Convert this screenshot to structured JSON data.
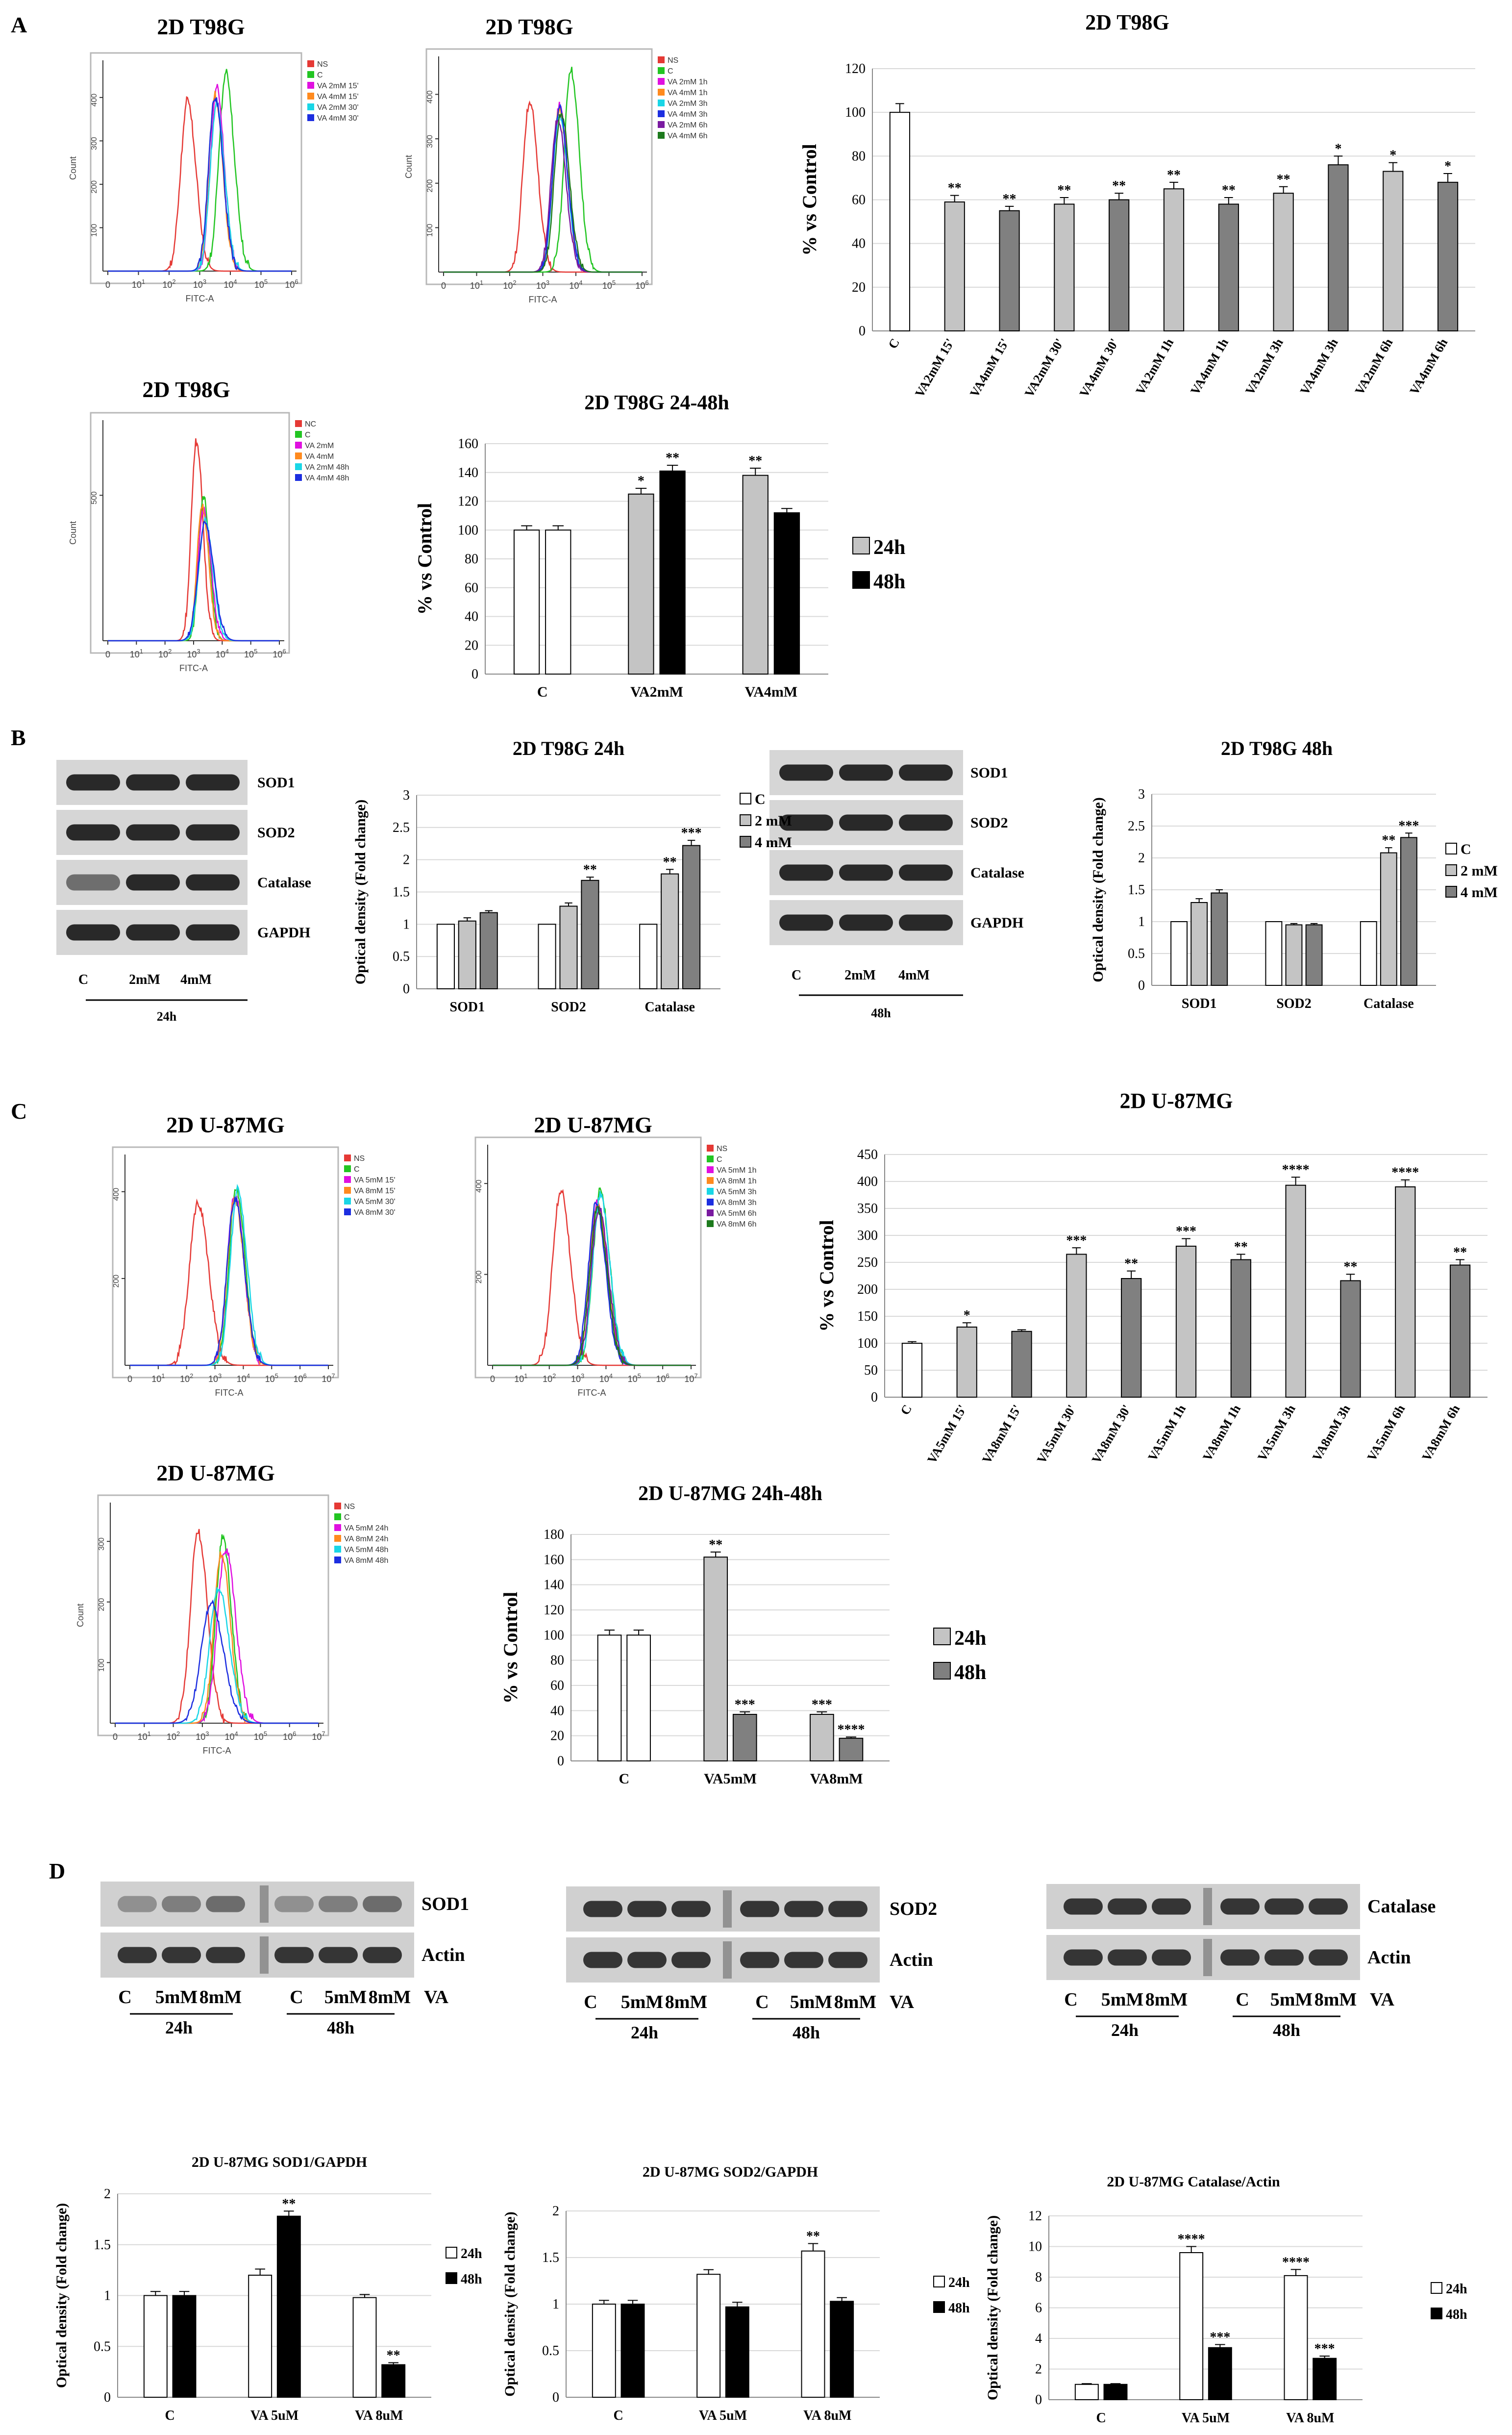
{
  "colors": {
    "red": "#e53935",
    "green": "#22c522",
    "magenta": "#e010e0",
    "orange": "#ff8a1e",
    "cyan": "#19d6e6",
    "blue": "#1c2ee0",
    "purple": "#7a1aa0",
    "darkgreen": "#1d7a1d",
    "white_bar": "#ffffff",
    "light_bar": "#c4c4c4",
    "dark_bar": "#808080",
    "black_bar": "#000000"
  },
  "panel_labels": [
    "A",
    "B",
    "C",
    "D"
  ],
  "histograms": [
    {
      "title": "2D T98G",
      "xlabel": "FITC-A",
      "ylabel": "Count",
      "yticks": [
        {
          "v": 100,
          "label": "100"
        },
        {
          "v": 200,
          "label": "200"
        },
        {
          "v": 300,
          "label": "300"
        },
        {
          "v": 400,
          "label": "400"
        }
      ],
      "ymax": 480,
      "legend": [
        {
          "label": "NS",
          "color": "red",
          "peak": 2.6,
          "width": 0.22,
          "height": 0.82
        },
        {
          "label": "C",
          "color": "green",
          "peak": 3.85,
          "width": 0.22,
          "height": 0.95
        },
        {
          "label": "VA 2mM 15'",
          "color": "magenta",
          "peak": 3.55,
          "width": 0.2,
          "height": 0.88
        },
        {
          "label": "VA 4mM 15'",
          "color": "orange",
          "peak": 3.5,
          "width": 0.2,
          "height": 0.85
        },
        {
          "label": "VA 2mM 30'",
          "color": "cyan",
          "peak": 3.55,
          "width": 0.21,
          "height": 0.8
        },
        {
          "label": "VA 4mM 30'",
          "color": "blue",
          "peak": 3.5,
          "width": 0.21,
          "height": 0.84
        }
      ]
    },
    {
      "title": "2D T98G",
      "xlabel": "FITC-A",
      "ylabel": "Count",
      "yticks": [
        {
          "v": 100,
          "label": "100"
        },
        {
          "v": 200,
          "label": "200"
        },
        {
          "v": 300,
          "label": "300"
        },
        {
          "v": 400,
          "label": "400"
        }
      ],
      "ymax": 480,
      "legend": [
        {
          "label": "NS",
          "color": "red",
          "peak": 2.6,
          "width": 0.2,
          "height": 0.8
        },
        {
          "label": "C",
          "color": "green",
          "peak": 3.85,
          "width": 0.2,
          "height": 0.95
        },
        {
          "label": "VA 2mM 1h",
          "color": "magenta",
          "peak": 3.5,
          "width": 0.2,
          "height": 0.78
        },
        {
          "label": "VA 4mM 1h",
          "color": "orange",
          "peak": 3.5,
          "width": 0.2,
          "height": 0.76
        },
        {
          "label": "VA 2mM 3h",
          "color": "cyan",
          "peak": 3.5,
          "width": 0.2,
          "height": 0.74
        },
        {
          "label": "VA 4mM 3h",
          "color": "blue",
          "peak": 3.5,
          "width": 0.2,
          "height": 0.77
        },
        {
          "label": "VA 2mM 6h",
          "color": "purple",
          "peak": 3.45,
          "width": 0.2,
          "height": 0.72
        },
        {
          "label": "VA 4mM 6h",
          "color": "darkgreen",
          "peak": 3.55,
          "width": 0.2,
          "height": 0.75
        }
      ]
    },
    {
      "title": "2D T98G",
      "xlabel": "FITC-A",
      "ylabel": "Count",
      "yticks": [
        {
          "v": 500,
          "label": "500"
        }
      ],
      "ymax": 750,
      "legend": [
        {
          "label": "NC",
          "color": "red",
          "peak": 3.1,
          "width": 0.18,
          "height": 0.92
        },
        {
          "label": "C",
          "color": "green",
          "peak": 3.35,
          "width": 0.17,
          "height": 0.66
        },
        {
          "label": "VA 2mM",
          "color": "magenta",
          "peak": 3.35,
          "width": 0.2,
          "height": 0.6
        },
        {
          "label": "VA 4mM",
          "color": "orange",
          "peak": 3.3,
          "width": 0.18,
          "height": 0.62
        },
        {
          "label": "VA 2mM 48h",
          "color": "cyan",
          "peak": 3.4,
          "width": 0.22,
          "height": 0.55
        },
        {
          "label": "VA 4mM 48h",
          "color": "blue",
          "peak": 3.4,
          "width": 0.24,
          "height": 0.54
        }
      ]
    },
    {
      "title": "2D U-87MG",
      "xlabel": "FITC-A",
      "ylabel": "",
      "yticks": [
        {
          "v": 200,
          "label": "200"
        },
        {
          "v": 400,
          "label": "400"
        }
      ],
      "ymax": 480,
      "legend": [
        {
          "label": "NS",
          "color": "red",
          "peak": 2.4,
          "width": 0.3,
          "height": 0.78
        },
        {
          "label": "C",
          "color": "green",
          "peak": 3.75,
          "width": 0.25,
          "height": 0.85
        },
        {
          "label": "VA 5mM 15'",
          "color": "magenta",
          "peak": 3.7,
          "width": 0.26,
          "height": 0.82
        },
        {
          "label": "VA 8mM 15'",
          "color": "orange",
          "peak": 3.7,
          "width": 0.26,
          "height": 0.8
        },
        {
          "label": "VA 5mM 30'",
          "color": "cyan",
          "peak": 3.8,
          "width": 0.26,
          "height": 0.84
        },
        {
          "label": "VA 8mM 30'",
          "color": "blue",
          "peak": 3.7,
          "width": 0.27,
          "height": 0.8
        }
      ]
    },
    {
      "title": "2D U-87MG",
      "xlabel": "FITC-A",
      "ylabel": "",
      "yticks": [
        {
          "v": 200,
          "label": "200"
        },
        {
          "v": 400,
          "label": "400"
        }
      ],
      "ymax": 480,
      "legend": [
        {
          "label": "NS",
          "color": "red",
          "peak": 2.4,
          "width": 0.28,
          "height": 0.8
        },
        {
          "label": "C",
          "color": "green",
          "peak": 3.8,
          "width": 0.26,
          "height": 0.8
        },
        {
          "label": "VA 5mM 1h",
          "color": "magenta",
          "peak": 3.7,
          "width": 0.27,
          "height": 0.75
        },
        {
          "label": "VA 8mM 1h",
          "color": "orange",
          "peak": 3.7,
          "width": 0.27,
          "height": 0.73
        },
        {
          "label": "VA 5mM 3h",
          "color": "cyan",
          "peak": 3.8,
          "width": 0.27,
          "height": 0.78
        },
        {
          "label": "VA 8mM 3h",
          "color": "blue",
          "peak": 3.65,
          "width": 0.27,
          "height": 0.74
        },
        {
          "label": "VA 5mM 6h",
          "color": "purple",
          "peak": 3.75,
          "width": 0.27,
          "height": 0.72
        },
        {
          "label": "VA 8mM 6h",
          "color": "darkgreen",
          "peak": 3.7,
          "width": 0.27,
          "height": 0.72
        }
      ]
    },
    {
      "title": "2D U-87MG",
      "xlabel": "FITC-A",
      "ylabel": "Count",
      "yticks": [
        {
          "v": 100,
          "label": "100"
        },
        {
          "v": 200,
          "label": "200"
        },
        {
          "v": 300,
          "label": "300"
        }
      ],
      "ymax": 360,
      "legend": [
        {
          "label": "NS",
          "color": "red",
          "peak": 2.85,
          "width": 0.26,
          "height": 0.88
        },
        {
          "label": "C",
          "color": "green",
          "peak": 3.7,
          "width": 0.24,
          "height": 0.85
        },
        {
          "label": "VA 5mM 24h",
          "color": "magenta",
          "peak": 3.8,
          "width": 0.28,
          "height": 0.8
        },
        {
          "label": "VA 8mM 24h",
          "color": "orange",
          "peak": 3.65,
          "width": 0.25,
          "height": 0.78
        },
        {
          "label": "VA 5mM 48h",
          "color": "cyan",
          "peak": 3.55,
          "width": 0.3,
          "height": 0.62
        },
        {
          "label": "VA 8mM 48h",
          "color": "blue",
          "peak": 3.3,
          "width": 0.34,
          "height": 0.55
        }
      ]
    }
  ],
  "blots": [
    {
      "rows": [
        "SOD1",
        "SOD2",
        "Catalase",
        "GAPDH"
      ],
      "lanes": [
        "C",
        "2mM",
        "4mM"
      ],
      "time": "24h"
    },
    {
      "rows": [
        "SOD1",
        "SOD2",
        "Catalase",
        "GAPDH"
      ],
      "lanes": [
        "C",
        "2mM",
        "4mM"
      ],
      "time": "48h"
    },
    {
      "rows": [
        "SOD1",
        "Actin"
      ],
      "lanes": [
        "C",
        "5mM",
        "8mM",
        "C",
        "5mM",
        "8mM"
      ],
      "times": [
        "24h",
        "48h"
      ],
      "suffix": "VA"
    },
    {
      "rows": [
        "SOD2",
        "Actin"
      ],
      "lanes": [
        "C",
        "5mM",
        "8mM",
        "C",
        "5mM",
        "8mM"
      ],
      "times": [
        "24h",
        "48h"
      ],
      "suffix": "VA"
    },
    {
      "rows": [
        "Catalase",
        "Actin"
      ],
      "lanes": [
        "C",
        "5mM",
        "8mM",
        "C",
        "5mM",
        "8mM"
      ],
      "times": [
        "24h",
        "48h"
      ],
      "suffix": "VA"
    }
  ],
  "chart_data": [
    {
      "id": "A1",
      "type": "bar",
      "title": "2D T98G",
      "xlabel": "",
      "ylabel": "% vs Control",
      "ylim": [
        0,
        120
      ],
      "ystep": 20,
      "rotate_labels": true,
      "categories": [
        "C",
        "VA2mM 15'",
        "VA4mM 15'",
        "VA2mM 30'",
        "VA4mM 30'",
        "VA2mM 1h",
        "VA4mM 1h",
        "VA2mM 3h",
        "VA4mM 3h",
        "VA2mM 6h",
        "VA4mM 6h"
      ],
      "values": [
        100,
        59,
        55,
        58,
        60,
        65,
        58,
        63,
        76,
        73,
        68
      ],
      "errors": [
        4,
        3,
        2,
        3,
        3,
        3,
        3,
        3,
        4,
        4,
        4
      ],
      "sig": [
        "",
        "**",
        "**",
        "**",
        "**",
        "**",
        "**",
        "**",
        "*",
        "*",
        "*"
      ],
      "colors": [
        "white_bar",
        "light_bar",
        "dark_bar",
        "light_bar",
        "dark_bar",
        "light_bar",
        "dark_bar",
        "light_bar",
        "dark_bar",
        "light_bar",
        "dark_bar"
      ]
    },
    {
      "id": "A2",
      "type": "bar",
      "title": "2D T98G 24-48h",
      "xlabel": "",
      "ylabel": "% vs Control",
      "ylim": [
        0,
        160
      ],
      "ystep": 20,
      "rotate_labels": false,
      "categories": [
        "C",
        "VA2mM",
        "VA4mM"
      ],
      "series": [
        {
          "name": "24h",
          "color": "light_bar",
          "values": [
            100,
            125,
            138
          ],
          "errors": [
            3,
            4,
            5
          ],
          "sig": [
            "",
            "*",
            "**"
          ]
        },
        {
          "name": "48h",
          "color": "black_bar",
          "values": [
            100,
            141,
            112
          ],
          "errors": [
            3,
            4,
            3
          ],
          "sig": [
            "",
            "**",
            ""
          ]
        }
      ],
      "first_group_white": true
    },
    {
      "id": "B1",
      "type": "bar",
      "title": "2D T98G 24h",
      "xlabel": "",
      "ylabel": "Optical density (Fold change)",
      "ylim": [
        0,
        3
      ],
      "ystep": 0.5,
      "rotate_labels": false,
      "categories": [
        "SOD1",
        "SOD2",
        "Catalase"
      ],
      "series": [
        {
          "name": "C",
          "color": "white_bar",
          "values": [
            1,
            1,
            1
          ],
          "errors": [
            0,
            0,
            0
          ],
          "sig": [
            "",
            "",
            ""
          ]
        },
        {
          "name": "2 mM",
          "color": "light_bar",
          "values": [
            1.05,
            1.28,
            1.78
          ],
          "errors": [
            0.05,
            0.05,
            0.07
          ],
          "sig": [
            "",
            "",
            "**"
          ]
        },
        {
          "name": "4 mM",
          "color": "dark_bar",
          "values": [
            1.18,
            1.68,
            2.22
          ],
          "errors": [
            0.03,
            0.05,
            0.08
          ],
          "sig": [
            "",
            "**",
            "***"
          ]
        }
      ]
    },
    {
      "id": "B2",
      "type": "bar",
      "title": "2D T98G 48h",
      "xlabel": "",
      "ylabel": "Optical density (Fold change)",
      "ylim": [
        0,
        3
      ],
      "ystep": 0.5,
      "rotate_labels": false,
      "categories": [
        "SOD1",
        "SOD2",
        "Catalase"
      ],
      "series": [
        {
          "name": "C",
          "color": "white_bar",
          "values": [
            1,
            1,
            1
          ],
          "errors": [
            0,
            0,
            0
          ],
          "sig": [
            "",
            "",
            ""
          ]
        },
        {
          "name": "2 mM",
          "color": "light_bar",
          "values": [
            1.3,
            0.95,
            2.08
          ],
          "errors": [
            0.06,
            0.02,
            0.08
          ],
          "sig": [
            "",
            "",
            "**"
          ]
        },
        {
          "name": "4 mM",
          "color": "dark_bar",
          "values": [
            1.45,
            0.95,
            2.32
          ],
          "errors": [
            0.05,
            0.02,
            0.07
          ],
          "sig": [
            "",
            "",
            "***"
          ]
        }
      ]
    },
    {
      "id": "C1",
      "type": "bar",
      "title": "2D U-87MG",
      "xlabel": "",
      "ylabel": "% vs Control",
      "ylim": [
        0,
        450
      ],
      "ystep": 50,
      "rotate_labels": true,
      "categories": [
        "C",
        "VA5mM 15'",
        "VA8mM 15'",
        "VA5mM 30'",
        "VA8mM 30'",
        "VA5mM 1h",
        "VA8mM 1h",
        "VA5mM 3h",
        "VA8mM 3h",
        "VA5mM 6h",
        "VA8mM 6h"
      ],
      "values": [
        100,
        130,
        122,
        265,
        220,
        280,
        255,
        393,
        216,
        390,
        245
      ],
      "errors": [
        3,
        8,
        3,
        12,
        14,
        14,
        10,
        15,
        12,
        13,
        10
      ],
      "sig": [
        "",
        "*",
        "",
        "***",
        "**",
        "***",
        "**",
        "****",
        "**",
        "****",
        "**"
      ],
      "colors": [
        "white_bar",
        "light_bar",
        "dark_bar",
        "light_bar",
        "dark_bar",
        "light_bar",
        "dark_bar",
        "light_bar",
        "dark_bar",
        "light_bar",
        "dark_bar"
      ]
    },
    {
      "id": "C2",
      "type": "bar",
      "title": "2D U-87MG 24h-48h",
      "xlabel": "",
      "ylabel": "% vs Control",
      "ylim": [
        0,
        180
      ],
      "ystep": 20,
      "rotate_labels": false,
      "categories": [
        "C",
        "VA5mM",
        "VA8mM"
      ],
      "series": [
        {
          "name": "24h",
          "color": "light_bar",
          "values": [
            100,
            162,
            37
          ],
          "errors": [
            4,
            4,
            2
          ],
          "sig": [
            "",
            "**",
            "***"
          ]
        },
        {
          "name": "48h",
          "color": "dark_bar",
          "values": [
            100,
            37,
            18
          ],
          "errors": [
            4,
            2,
            1
          ],
          "sig": [
            "",
            "***",
            "****"
          ]
        }
      ],
      "first_group_white": true
    },
    {
      "id": "D1",
      "type": "bar",
      "title": "2D U-87MG SOD1/GAPDH",
      "xlabel": "",
      "ylabel": "Optical density (Fold change)",
      "ylim": [
        0,
        2
      ],
      "ystep": 0.5,
      "rotate_labels": false,
      "categories": [
        "C",
        "VA 5uM",
        "VA 8uM"
      ],
      "series": [
        {
          "name": "24h",
          "color": "white_bar",
          "values": [
            1,
            1.2,
            0.98
          ],
          "errors": [
            0.04,
            0.06,
            0.03
          ],
          "sig": [
            "",
            "",
            ""
          ]
        },
        {
          "name": "48h",
          "color": "black_bar",
          "values": [
            1,
            1.78,
            0.32
          ],
          "errors": [
            0.04,
            0.05,
            0.02
          ],
          "sig": [
            "",
            "**",
            "**"
          ]
        }
      ]
    },
    {
      "id": "D2",
      "type": "bar",
      "title": "2D U-87MG SOD2/GAPDH",
      "xlabel": "",
      "ylabel": "Optical density (Fold change)",
      "ylim": [
        0,
        2
      ],
      "ystep": 0.5,
      "rotate_labels": false,
      "categories": [
        "C",
        "VA 5uM",
        "VA 8uM"
      ],
      "series": [
        {
          "name": "24h",
          "color": "white_bar",
          "values": [
            1,
            1.32,
            1.57
          ],
          "errors": [
            0.04,
            0.05,
            0.08
          ],
          "sig": [
            "",
            "",
            "**"
          ]
        },
        {
          "name": "48h",
          "color": "black_bar",
          "values": [
            1,
            0.97,
            1.03
          ],
          "errors": [
            0.04,
            0.05,
            0.04
          ],
          "sig": [
            "",
            "",
            ""
          ]
        }
      ]
    },
    {
      "id": "D3",
      "type": "bar",
      "title": "2D U-87MG Catalase/Actin",
      "xlabel": "",
      "ylabel": "Optical density (Fold change)",
      "ylim": [
        0,
        12
      ],
      "ystep": 2,
      "rotate_labels": false,
      "categories": [
        "C",
        "VA 5uM",
        "VA 8uM"
      ],
      "series": [
        {
          "name": "24h",
          "color": "white_bar",
          "values": [
            1,
            9.6,
            8.1
          ],
          "errors": [
            0.05,
            0.4,
            0.4
          ],
          "sig": [
            "",
            "****",
            "****"
          ]
        },
        {
          "name": "48h",
          "color": "black_bar",
          "values": [
            1,
            3.4,
            2.7
          ],
          "errors": [
            0.05,
            0.2,
            0.15
          ],
          "sig": [
            "",
            "***",
            "***"
          ]
        }
      ]
    }
  ]
}
